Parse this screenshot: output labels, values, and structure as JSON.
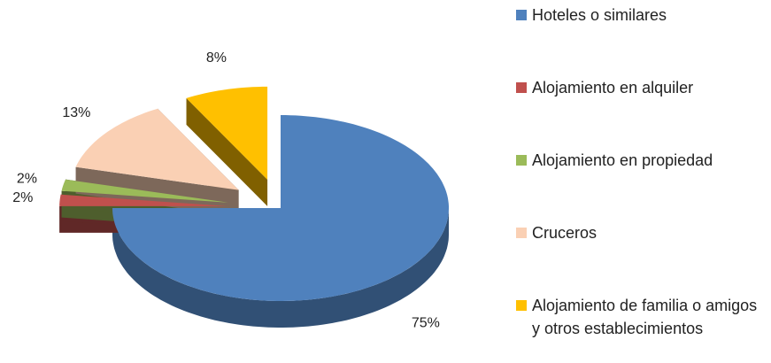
{
  "chart_data": {
    "type": "pie",
    "categories": [
      "Hoteles o similares",
      "Alojamiento en alquiler",
      "Alojamiento en propiedad",
      "Cruceros",
      "Alojamiento de familia o amigos y otros establecimientos"
    ],
    "values": [
      75,
      2,
      2,
      13,
      8
    ],
    "value_labels": [
      "75%",
      "2%",
      "2%",
      "13%",
      "8%"
    ],
    "colors": [
      "#4f81bd",
      "#c0504d",
      "#9bbb59",
      "#fad0b4",
      "#ffc000"
    ],
    "legend": "right"
  }
}
